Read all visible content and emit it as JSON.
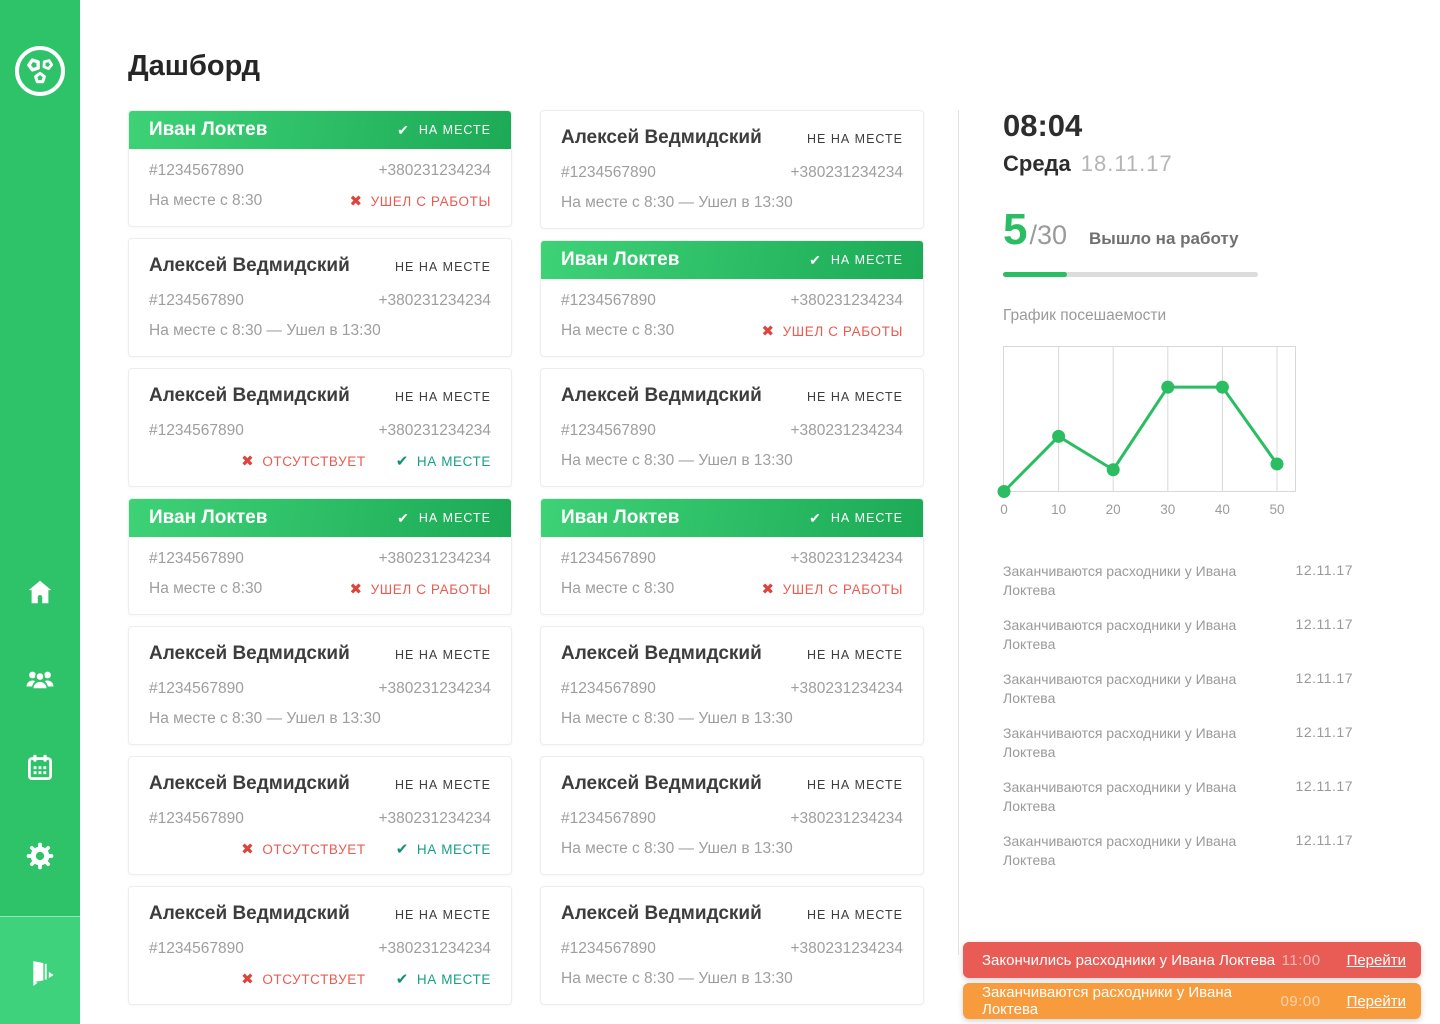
{
  "app": {
    "title": "Дашборд"
  },
  "theme": {
    "sidebar_green": "#2EC369",
    "sidebar_footer_green": "#3ED27D",
    "card_header_gradient": [
      "#3ED277",
      "#1CAA56"
    ],
    "accent_green": "#2ABD62",
    "status_red": "#EA5B51",
    "status_teal": "#17A086",
    "toast_red": "#E85C55",
    "toast_orange": "#F89B3C",
    "text_dark": "#3D3D3D",
    "text_gray": "#9E9E9E"
  },
  "ui": {
    "icons": {
      "check": "✔",
      "cross": "✖"
    }
  },
  "sidebar": {
    "items": [
      {
        "name": "logo"
      },
      {
        "name": "home"
      },
      {
        "name": "employees"
      },
      {
        "name": "schedule"
      },
      {
        "name": "settings"
      },
      {
        "name": "logout"
      }
    ]
  },
  "cards": {
    "columns": [
      [
        {
          "name": "Иван Локтев",
          "type": "present",
          "badge": "НА МЕСТЕ",
          "id": "#1234567890",
          "phone": "+380231234234",
          "time": "На месте с 8:30",
          "action": "УШЕЛ С РАБОТЫ"
        },
        {
          "name": "Алексей Ведмидский",
          "type": "away",
          "badge": "НЕ НА МЕСТЕ",
          "id": "#1234567890",
          "phone": "+380231234234",
          "time": "На месте с 8:30 — Ушел в 13:30"
        },
        {
          "name": "Алексей Ведмидский",
          "type": "absent",
          "badge": "НЕ НА МЕСТЕ",
          "id": "#1234567890",
          "phone": "+380231234234",
          "statuses": [
            {
              "icon": "cross",
              "label": "ОТСУТСТВУЕТ",
              "style": "red"
            },
            {
              "icon": "check",
              "label": "НА МЕСТЕ",
              "style": "teal"
            }
          ]
        },
        {
          "name": "Иван Локтев",
          "type": "present",
          "badge": "НА МЕСТЕ",
          "id": "#1234567890",
          "phone": "+380231234234",
          "time": "На месте с 8:30",
          "action": "УШЕЛ С РАБОТЫ"
        },
        {
          "name": "Алексей Ведмидский",
          "type": "away",
          "badge": "НЕ НА МЕСТЕ",
          "id": "#1234567890",
          "phone": "+380231234234",
          "time": "На месте с 8:30 — Ушел в 13:30"
        },
        {
          "name": "Алексей Ведмидский",
          "type": "absent",
          "badge": "НЕ НА МЕСТЕ",
          "id": "#1234567890",
          "phone": "+380231234234",
          "statuses": [
            {
              "icon": "cross",
              "label": "ОТСУТСТВУЕТ",
              "style": "red"
            },
            {
              "icon": "check",
              "label": "НА МЕСТЕ",
              "style": "teal"
            }
          ]
        },
        {
          "name": "Алексей Ведмидский",
          "type": "absent",
          "badge": "НЕ НА МЕСТЕ",
          "id": "#1234567890",
          "phone": "+380231234234",
          "statuses": [
            {
              "icon": "cross",
              "label": "ОТСУТСТВУЕТ",
              "style": "red"
            },
            {
              "icon": "check",
              "label": "НА МЕСТЕ",
              "style": "teal"
            }
          ]
        }
      ],
      [
        {
          "name": "Алексей Ведмидский",
          "type": "away",
          "badge": "НЕ НА МЕСТЕ",
          "id": "#1234567890",
          "phone": "+380231234234",
          "time": "На месте с 8:30 — Ушел в 13:30"
        },
        {
          "name": "Иван Локтев",
          "type": "present",
          "badge": "НА МЕСТЕ",
          "id": "#1234567890",
          "phone": "+380231234234",
          "time": "На месте с 8:30",
          "action": "УШЕЛ С РАБОТЫ"
        },
        {
          "name": "Алексей Ведмидский",
          "type": "away",
          "badge": "НЕ НА МЕСТЕ",
          "id": "#1234567890",
          "phone": "+380231234234",
          "time": "На месте с 8:30 — Ушел в 13:30"
        },
        {
          "name": "Иван Локтев",
          "type": "present",
          "badge": "НА МЕСТЕ",
          "id": "#1234567890",
          "phone": "+380231234234",
          "time": "На месте с 8:30",
          "action": "УШЕЛ С РАБОТЫ"
        },
        {
          "name": "Алексей Ведмидский",
          "type": "away",
          "badge": "НЕ НА МЕСТЕ",
          "id": "#1234567890",
          "phone": "+380231234234",
          "time": "На месте с 8:30 — Ушел в 13:30"
        },
        {
          "name": "Алексей Ведмидский",
          "type": "away",
          "badge": "НЕ НА МЕСТЕ",
          "id": "#1234567890",
          "phone": "+380231234234",
          "time": "На месте с 8:30 — Ушел в 13:30"
        },
        {
          "name": "Алексей Ведмидский",
          "type": "away",
          "badge": "НЕ НА МЕСТЕ",
          "id": "#1234567890",
          "phone": "+380231234234",
          "time": "На месте с 8:30 — Ушел в 13:30"
        }
      ]
    ]
  },
  "right_panel": {
    "time": "08:04",
    "weekday": "Среда",
    "date": "18.11.17",
    "count": "5",
    "total": "/30",
    "count_label": "Вышло на работу",
    "progress_pct": 25,
    "chart_title": "График посешаемости",
    "notifications": [
      {
        "text": "Заканчиваются расходники у Ивана Локтева",
        "date": "12.11.17"
      },
      {
        "text": "Заканчиваются расходники у Ивана Локтева",
        "date": "12.11.17"
      },
      {
        "text": "Заканчиваются расходники у Ивана Локтева",
        "date": "12.11.17"
      },
      {
        "text": "Заканчиваются расходники у Ивана Локтева",
        "date": "12.11.17"
      },
      {
        "text": "Заканчиваются расходники у Ивана Локтева",
        "date": "12.11.17"
      },
      {
        "text": "Заканчиваются расходники у Ивана Локтева",
        "date": "12.11.17"
      }
    ]
  },
  "chart_data": {
    "type": "line",
    "title": "График посешаемости",
    "x": [
      0,
      10,
      20,
      30,
      40,
      50
    ],
    "values": [
      0,
      38,
      15,
      72,
      72,
      19
    ],
    "xlabel": "",
    "ylabel": "",
    "ylim": [
      0,
      100
    ],
    "grid": "vertical-only",
    "legend": "none",
    "line_color": "#2ABD62"
  },
  "toasts": [
    {
      "text": "Закончились расходники у Ивана Локтева",
      "time": "11:00",
      "action": "Перейти",
      "color": "#E85C55"
    },
    {
      "text": "Заканчиваются расходники у Ивана Локтева",
      "time": "09:00",
      "action": "Перейти",
      "color": "#F89B3C"
    }
  ]
}
